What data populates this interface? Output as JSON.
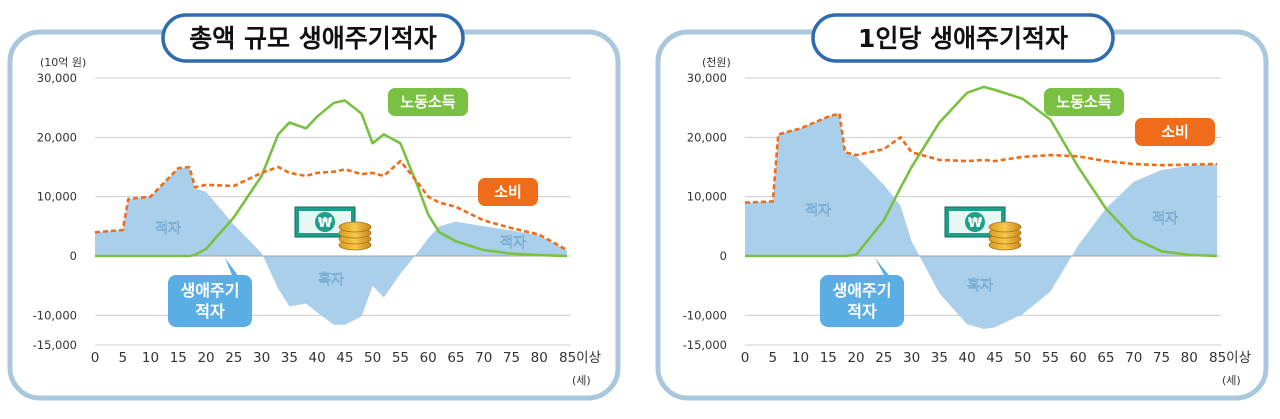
{
  "colors": {
    "frame": "#a9c7dd",
    "title_border": "#2f6cae",
    "area": "#a9cfeb",
    "labor_income": "#7ac143",
    "consumption": "#ef6c1a",
    "callout_blue": "#5aaee3",
    "axis_text": "#333333",
    "grid": "#cccccc"
  },
  "icons": [
    "money-bill-icon",
    "coin-stack-icon"
  ],
  "chart_data": [
    {
      "type": "line",
      "title": "총액 규모 생애주기적자",
      "unit_label": "(10억 원)",
      "x_unit": "(세)",
      "x_ticks": [
        0,
        5,
        10,
        15,
        20,
        25,
        30,
        35,
        40,
        45,
        50,
        55,
        60,
        65,
        70,
        75,
        80,
        85
      ],
      "x_tick_labels": [
        "0",
        "5",
        "10",
        "15",
        "20",
        "25",
        "30",
        "35",
        "40",
        "45",
        "50",
        "55",
        "60",
        "65",
        "70",
        "75",
        "80",
        "85이상"
      ],
      "y_ticks": [
        30000,
        20000,
        10000,
        0,
        -10000,
        -15000
      ],
      "y_tick_labels": [
        "30,000",
        "20,000",
        "10,000",
        "0",
        "-10,000",
        "-15,000"
      ],
      "xlim": [
        0,
        85
      ],
      "ylim": [
        -15000,
        30000
      ],
      "grid": true,
      "x": [
        0,
        5,
        6,
        10,
        15,
        17,
        18,
        20,
        25,
        30,
        33,
        35,
        38,
        40,
        43,
        45,
        48,
        50,
        52,
        55,
        58,
        60,
        62,
        65,
        70,
        75,
        80,
        85
      ],
      "series": [
        {
          "name": "노동소득",
          "style": "solid",
          "values": [
            0,
            0,
            0,
            0,
            0,
            0,
            200,
            1200,
            6500,
            13500,
            20500,
            22500,
            21500,
            23500,
            25800,
            26200,
            24000,
            19000,
            20500,
            19000,
            12000,
            7000,
            4000,
            2500,
            1000,
            400,
            150,
            0
          ]
        },
        {
          "name": "소비",
          "style": "dashed",
          "values": [
            4000,
            4400,
            9600,
            10000,
            14800,
            15000,
            11600,
            12000,
            11800,
            14000,
            15000,
            14000,
            13500,
            14000,
            14200,
            14600,
            13800,
            14000,
            13500,
            16000,
            12500,
            10000,
            9000,
            8300,
            6000,
            4700,
            3600,
            1000
          ]
        }
      ],
      "annotations": [
        {
          "text": "적자",
          "pos": "left"
        },
        {
          "text": "흑자",
          "pos": "middle"
        },
        {
          "text": "적자",
          "pos": "right"
        },
        {
          "text": "생애주기\n적자",
          "pos": "callout"
        }
      ]
    },
    {
      "type": "line",
      "title": "1인당 생애주기적자",
      "unit_label": "(천원)",
      "x_unit": "(세)",
      "x_ticks": [
        0,
        5,
        10,
        15,
        20,
        25,
        30,
        35,
        40,
        45,
        50,
        55,
        60,
        65,
        70,
        75,
        80,
        85
      ],
      "x_tick_labels": [
        "0",
        "5",
        "10",
        "15",
        "20",
        "25",
        "30",
        "35",
        "40",
        "45",
        "50",
        "55",
        "60",
        "65",
        "70",
        "75",
        "80",
        "85이상"
      ],
      "y_ticks": [
        30000,
        20000,
        10000,
        0,
        -10000,
        -15000
      ],
      "y_tick_labels": [
        "30,000",
        "20,000",
        "10,000",
        "0",
        "-10,000",
        "-15,000"
      ],
      "xlim": [
        0,
        85
      ],
      "ylim": [
        -15000,
        30000
      ],
      "grid": true,
      "x": [
        0,
        5,
        6,
        10,
        15,
        17,
        18,
        20,
        25,
        28,
        30,
        35,
        40,
        43,
        45,
        50,
        55,
        60,
        65,
        70,
        75,
        80,
        85
      ],
      "series": [
        {
          "name": "노동소득",
          "style": "solid",
          "values": [
            0,
            0,
            0,
            0,
            0,
            0,
            0,
            200,
            6000,
            11500,
            15000,
            22500,
            27500,
            28500,
            28000,
            26500,
            23000,
            15000,
            8000,
            3000,
            800,
            200,
            0
          ]
        },
        {
          "name": "소비",
          "style": "dashed",
          "values": [
            9000,
            9200,
            20500,
            21500,
            23500,
            24000,
            17500,
            17000,
            18000,
            20000,
            17500,
            16200,
            16000,
            16200,
            16000,
            16700,
            17000,
            16800,
            16000,
            15500,
            15300,
            15400,
            15500
          ]
        }
      ],
      "annotations": [
        {
          "text": "적자",
          "pos": "left"
        },
        {
          "text": "흑자",
          "pos": "middle"
        },
        {
          "text": "적자",
          "pos": "right"
        },
        {
          "text": "생애주기\n적자",
          "pos": "callout"
        }
      ]
    }
  ]
}
